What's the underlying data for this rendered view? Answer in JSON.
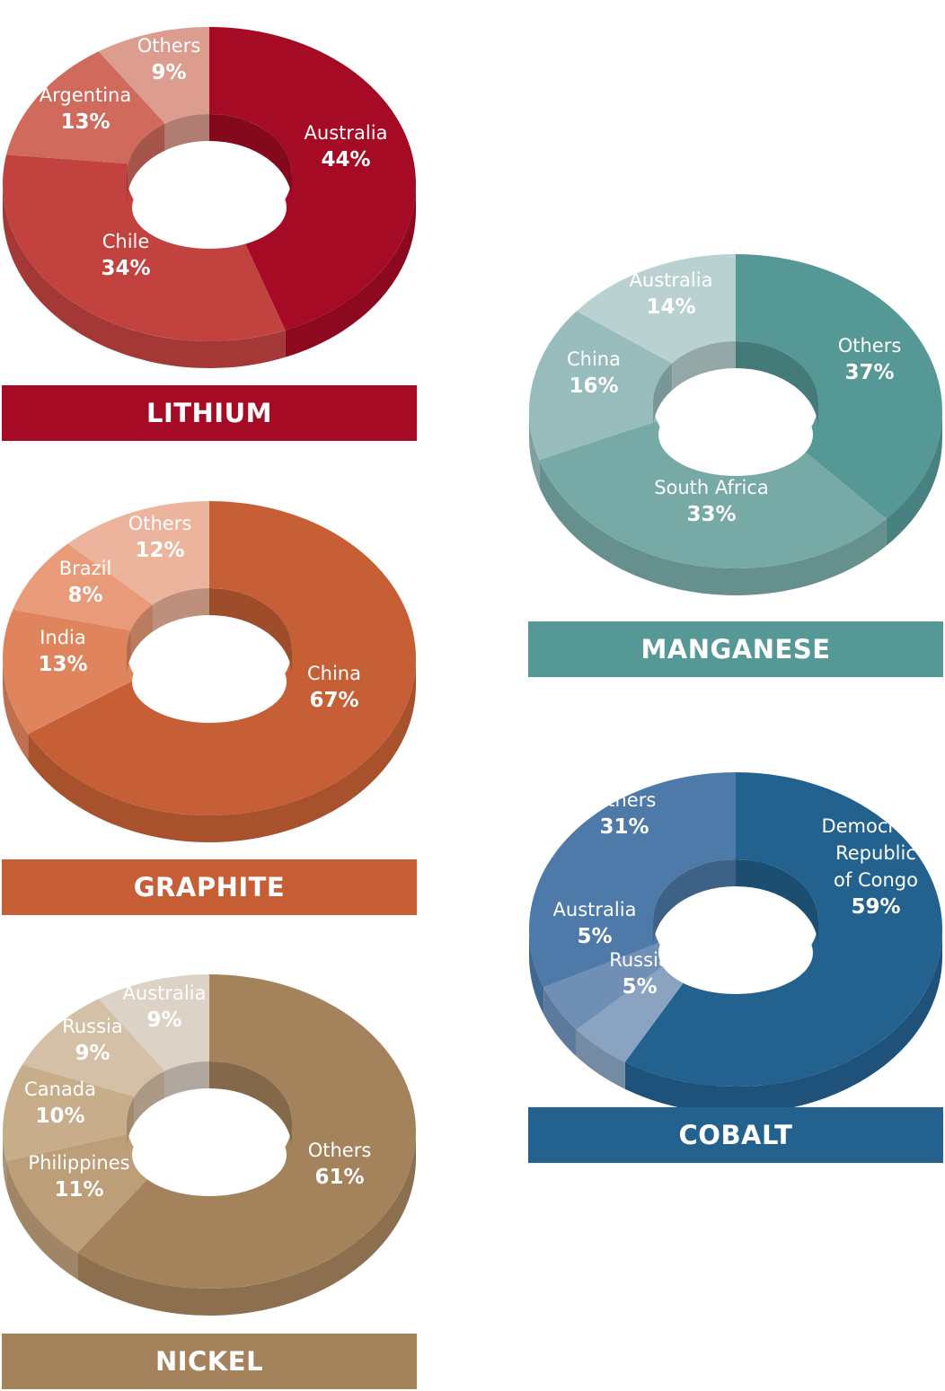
{
  "chart_data": [
    {
      "type": "pie",
      "variant": "donut-3d",
      "title": "LITHIUM",
      "categories": [
        "Australia",
        "Chile",
        "Argentina",
        "Others"
      ],
      "values": [
        44,
        34,
        13,
        9
      ],
      "labels": [
        "44%",
        "34%",
        "13%",
        "9%"
      ],
      "colors": [
        "#a50b24",
        "#c1423f",
        "#d06a5d",
        "#dc9c8e"
      ],
      "accent": "#a50b24"
    },
    {
      "type": "pie",
      "variant": "donut-3d",
      "title": "GRAPHITE",
      "categories": [
        "China",
        "India",
        "Brazil",
        "Others"
      ],
      "values": [
        67,
        13,
        8,
        12
      ],
      "labels": [
        "67%",
        "13%",
        "8%",
        "12%"
      ],
      "colors": [
        "#c65f35",
        "#e0845e",
        "#e89a79",
        "#ecb49d"
      ],
      "accent": "#c65f35"
    },
    {
      "type": "pie",
      "variant": "donut-3d",
      "title": "NICKEL",
      "categories": [
        "Others",
        "Philippines",
        "Canada",
        "Russia",
        "Australia"
      ],
      "values": [
        61,
        11,
        10,
        9,
        9
      ],
      "labels": [
        "61%",
        "11%",
        "10%",
        "9%",
        "9%"
      ],
      "colors": [
        "#a4835c",
        "#bc9e78",
        "#c8ad8b",
        "#d4c0a6",
        "#dcd2c5"
      ],
      "accent": "#a4835c"
    },
    {
      "type": "pie",
      "variant": "donut-3d",
      "title": "MANGANESE",
      "categories": [
        "Others",
        "South Africa",
        "China",
        "Australia"
      ],
      "values": [
        37,
        33,
        16,
        14
      ],
      "labels": [
        "37%",
        "33%",
        "16%",
        "14%"
      ],
      "colors": [
        "#559895",
        "#77a9a6",
        "#98bcbb",
        "#b9d2d1"
      ],
      "accent": "#559895"
    },
    {
      "type": "pie",
      "variant": "donut-3d",
      "title": "COBALT",
      "categories": [
        "Democratic Republic of Congo",
        "Russia",
        "Australia",
        "Others"
      ],
      "values": [
        59,
        5,
        5,
        31
      ],
      "labels": [
        "59%",
        "5%",
        "5%",
        "31%"
      ],
      "colors": [
        "#23618f",
        "#8aa3c0",
        "#6f8fb5",
        "#4d7aa8"
      ],
      "accent": "#23618f"
    }
  ]
}
